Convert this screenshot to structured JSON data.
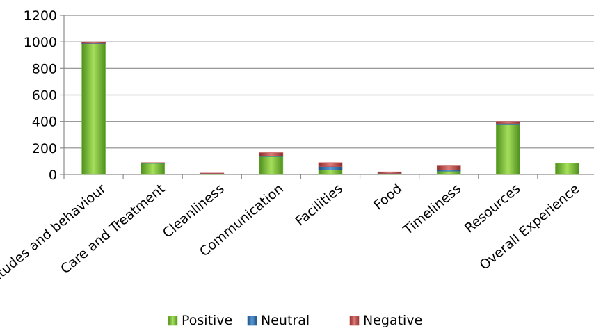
{
  "chart_data": {
    "type": "bar",
    "stacked": true,
    "categories": [
      "Attitudes and behaviour",
      "Care and Treatment",
      "Cleanliness",
      "Communication",
      "Facilities",
      "Food",
      "Timeliness",
      "Resources",
      "Overall Experience"
    ],
    "series": [
      {
        "name": "Positive",
        "color": "#7dc242",
        "values": [
          985,
          85,
          8,
          135,
          35,
          5,
          25,
          375,
          85
        ]
      },
      {
        "name": "Neutral",
        "color": "#2e6fae",
        "values": [
          5,
          2,
          1,
          5,
          25,
          3,
          10,
          10,
          0
        ]
      },
      {
        "name": "Negative",
        "color": "#c0504d",
        "values": [
          10,
          3,
          2,
          25,
          30,
          12,
          30,
          15,
          0
        ]
      }
    ],
    "yticks": [
      "0",
      "200",
      "400",
      "600",
      "800",
      "1000",
      "1200"
    ],
    "ylim": [
      0,
      1200
    ],
    "grid": true,
    "legend_position": "bottom",
    "title": "",
    "xlabel": "",
    "ylabel": ""
  }
}
